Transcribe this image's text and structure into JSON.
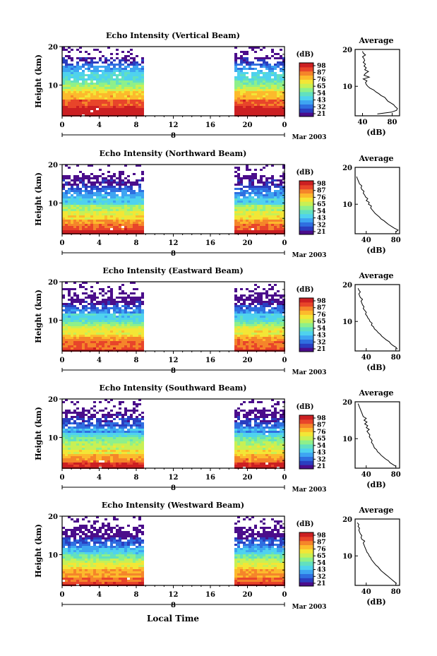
{
  "x_axis_label": "Local Time",
  "colorbar": {
    "unit": "(dB)",
    "ticks": [
      "98",
      "87",
      "76",
      "65",
      "54",
      "43",
      "32",
      "21"
    ],
    "colors": [
      "#4b0d8b",
      "#2a3ec0",
      "#2f6fe0",
      "#3ea5f2",
      "#4fd2ee",
      "#62e0c0",
      "#8ef08a",
      "#c8f055",
      "#f3e636",
      "#fcba2c",
      "#f5852a",
      "#e8452a",
      "#cc1f22"
    ]
  },
  "chart_data": [
    {
      "type": "heatmap",
      "title": "Echo Intensity (Vertical Beam)",
      "ylabel": "Height (km)",
      "ylim": [
        2,
        20
      ],
      "xlim": [
        0,
        24
      ],
      "x_ticks": [
        "0",
        "4",
        "8",
        "12",
        "16",
        "20",
        "0"
      ],
      "date_tick": "8",
      "date_label": "Mar 2003",
      "data_gap_hours": [
        9,
        18.5
      ],
      "average_profile": {
        "title": "Average",
        "xlabel": "(dB)",
        "x_ticks": [
          "40",
          "80"
        ],
        "y_ticks": [
          "20",
          "10"
        ],
        "xlim": [
          30,
          90
        ],
        "height_km": [
          2.5,
          3,
          3.5,
          4,
          4.5,
          5,
          5.5,
          6,
          6.5,
          7,
          7.5,
          8,
          8.5,
          9,
          9.5,
          10,
          10.5,
          11,
          11.5,
          12,
          12.5,
          13,
          13.5,
          14,
          14.5,
          15,
          15.5,
          16,
          16.5,
          17,
          17.5,
          18,
          18.5,
          19,
          19.5
        ],
        "intensity_db": [
          60,
          79,
          86,
          87,
          84,
          82,
          78,
          74,
          72,
          70,
          65,
          62,
          58,
          55,
          50,
          47,
          45,
          44,
          46,
          41,
          49,
          42,
          44,
          48,
          43,
          45,
          42,
          44,
          41,
          43,
          42,
          40,
          44,
          41,
          40
        ]
      }
    },
    {
      "type": "heatmap",
      "title": "Echo Intensity (Northward Beam)",
      "ylabel": "Height (km)",
      "ylim": [
        2,
        20
      ],
      "xlim": [
        0,
        24
      ],
      "x_ticks": [
        "0",
        "4",
        "8",
        "12",
        "16",
        "20",
        "0"
      ],
      "date_tick": "8",
      "date_label": "Mar 2003",
      "data_gap_hours": [
        9,
        18.5
      ],
      "average_profile": {
        "title": "Average",
        "xlabel": "(dB)",
        "x_ticks": [
          "40",
          "80"
        ],
        "y_ticks": [
          "20",
          "10"
        ],
        "xlim": [
          25,
          85
        ],
        "height_km": [
          2.5,
          3,
          3.5,
          4,
          4.5,
          5,
          5.5,
          6,
          6.5,
          7,
          7.5,
          8,
          8.5,
          9,
          9.5,
          10,
          10.5,
          11,
          11.5,
          12,
          12.5,
          13,
          13.5,
          14,
          14.5,
          15,
          15.5,
          16,
          16.5,
          17,
          17.5
        ],
        "intensity_db": [
          80,
          83,
          78,
          74,
          70,
          67,
          64,
          60,
          58,
          55,
          52,
          50,
          48,
          46,
          47,
          43,
          44,
          40,
          42,
          39,
          38,
          36,
          37,
          34,
          33,
          34,
          31,
          30,
          29,
          28,
          27
        ]
      }
    },
    {
      "type": "heatmap",
      "title": "Echo Intensity (Eastward Beam)",
      "ylabel": "Height (km)",
      "ylim": [
        2,
        20
      ],
      "xlim": [
        0,
        24
      ],
      "x_ticks": [
        "0",
        "4",
        "8",
        "12",
        "16",
        "20",
        "0"
      ],
      "date_tick": "8",
      "date_label": "Mar 2003",
      "data_gap_hours": [
        9,
        18.5
      ],
      "average_profile": {
        "title": "Average",
        "xlabel": "(dB)",
        "x_ticks": [
          "40",
          "80"
        ],
        "y_ticks": [
          "20",
          "10"
        ],
        "xlim": [
          25,
          85
        ],
        "height_km": [
          2.5,
          3,
          3.5,
          4,
          4.5,
          5,
          5.5,
          6,
          6.5,
          7,
          7.5,
          8,
          8.5,
          9,
          9.5,
          10,
          10.5,
          11,
          11.5,
          12,
          12.5,
          13,
          13.5,
          14,
          14.5,
          15,
          15.5,
          16,
          16.5,
          17,
          17.5,
          18,
          18.5,
          19
        ],
        "intensity_db": [
          82,
          80,
          76,
          73,
          71,
          67,
          64,
          61,
          59,
          56,
          54,
          51,
          50,
          47,
          48,
          45,
          44,
          42,
          41,
          39,
          40,
          38,
          36,
          37,
          35,
          34,
          33,
          35,
          32,
          31,
          30,
          32,
          30,
          29
        ]
      }
    },
    {
      "type": "heatmap",
      "title": "Echo Intensity (Southward Beam)",
      "ylabel": "Height (km)",
      "ylim": [
        2,
        20
      ],
      "xlim": [
        0,
        24
      ],
      "x_ticks": [
        "0",
        "4",
        "8",
        "12",
        "16",
        "20",
        "0"
      ],
      "date_tick": "8",
      "date_label": "Mar 2003",
      "data_gap_hours": [
        9,
        18.5
      ],
      "average_profile": {
        "title": "Average",
        "xlabel": "(dB)",
        "x_ticks": [
          "40",
          "80"
        ],
        "y_ticks": [
          "20",
          "10"
        ],
        "xlim": [
          25,
          85
        ],
        "height_km": [
          2.5,
          3,
          3.5,
          4,
          4.5,
          5,
          5.5,
          6,
          6.5,
          7,
          7.5,
          8,
          8.5,
          9,
          9.5,
          10,
          10.5,
          11,
          11.5,
          12,
          12.5,
          13,
          13.5,
          14,
          14.5,
          15,
          15.5,
          16,
          16.5,
          17,
          17.5,
          18,
          18.5,
          19,
          19.5
        ],
        "intensity_db": [
          80,
          76,
          72,
          70,
          66,
          63,
          60,
          58,
          55,
          54,
          51,
          50,
          49,
          47,
          48,
          46,
          44,
          45,
          43,
          41,
          44,
          40,
          42,
          38,
          41,
          37,
          40,
          36,
          35,
          34,
          33,
          32,
          31,
          30,
          29
        ]
      }
    },
    {
      "type": "heatmap",
      "title": "Echo Intensity (Westward Beam)",
      "ylabel": "Height (km)",
      "ylim": [
        2,
        20
      ],
      "xlim": [
        0,
        24
      ],
      "x_ticks": [
        "0",
        "4",
        "8",
        "12",
        "16",
        "20",
        "0"
      ],
      "date_tick": "8",
      "date_label": "Mar 2003",
      "data_gap_hours": [
        9,
        18.5
      ],
      "average_profile": {
        "title": "Average",
        "xlabel": "(dB)",
        "x_ticks": [
          "40",
          "80"
        ],
        "y_ticks": [
          "20",
          "10"
        ],
        "xlim": [
          25,
          85
        ],
        "height_km": [
          2.5,
          3,
          3.5,
          4,
          4.5,
          5,
          5.5,
          6,
          6.5,
          7,
          7.5,
          8,
          8.5,
          9,
          9.5,
          10,
          10.5,
          11,
          11.5,
          12,
          12.5,
          13,
          13.5,
          14,
          14.5,
          15,
          15.5,
          16,
          16.5,
          17,
          17.5,
          18,
          18.5,
          19
        ],
        "intensity_db": [
          81,
          78,
          75,
          72,
          69,
          66,
          63,
          60,
          58,
          56,
          53,
          51,
          49,
          47,
          46,
          44,
          43,
          41,
          40,
          39,
          38,
          37,
          36,
          38,
          34,
          33,
          34,
          32,
          31,
          30,
          31,
          29,
          30,
          28
        ]
      }
    }
  ]
}
